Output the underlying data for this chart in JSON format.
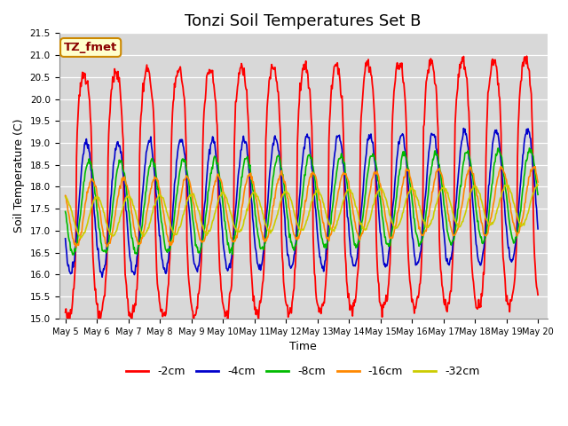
{
  "title": "Tonzi Soil Temperatures Set B",
  "xlabel": "Time",
  "ylabel": "Soil Temperature (C)",
  "ylim": [
    15.0,
    21.5
  ],
  "yticks": [
    15.0,
    15.5,
    16.0,
    16.5,
    17.0,
    17.5,
    18.0,
    18.5,
    19.0,
    19.5,
    20.0,
    20.5,
    21.0,
    21.5
  ],
  "series_colors": [
    "#ff0000",
    "#0000cc",
    "#00bb00",
    "#ff8800",
    "#cccc00"
  ],
  "series_labels": [
    "-2cm",
    "-4cm",
    "-8cm",
    "-16cm",
    "-32cm"
  ],
  "annotation_text": "TZ_fmet",
  "annotation_bg": "#ffffcc",
  "annotation_border": "#cc8800",
  "plot_bg": "#d8d8d8",
  "grid_color": "#ffffff",
  "title_fontsize": 13,
  "axis_fontsize": 9,
  "legend_fontsize": 9,
  "figsize": [
    6.4,
    4.8
  ],
  "dpi": 100
}
